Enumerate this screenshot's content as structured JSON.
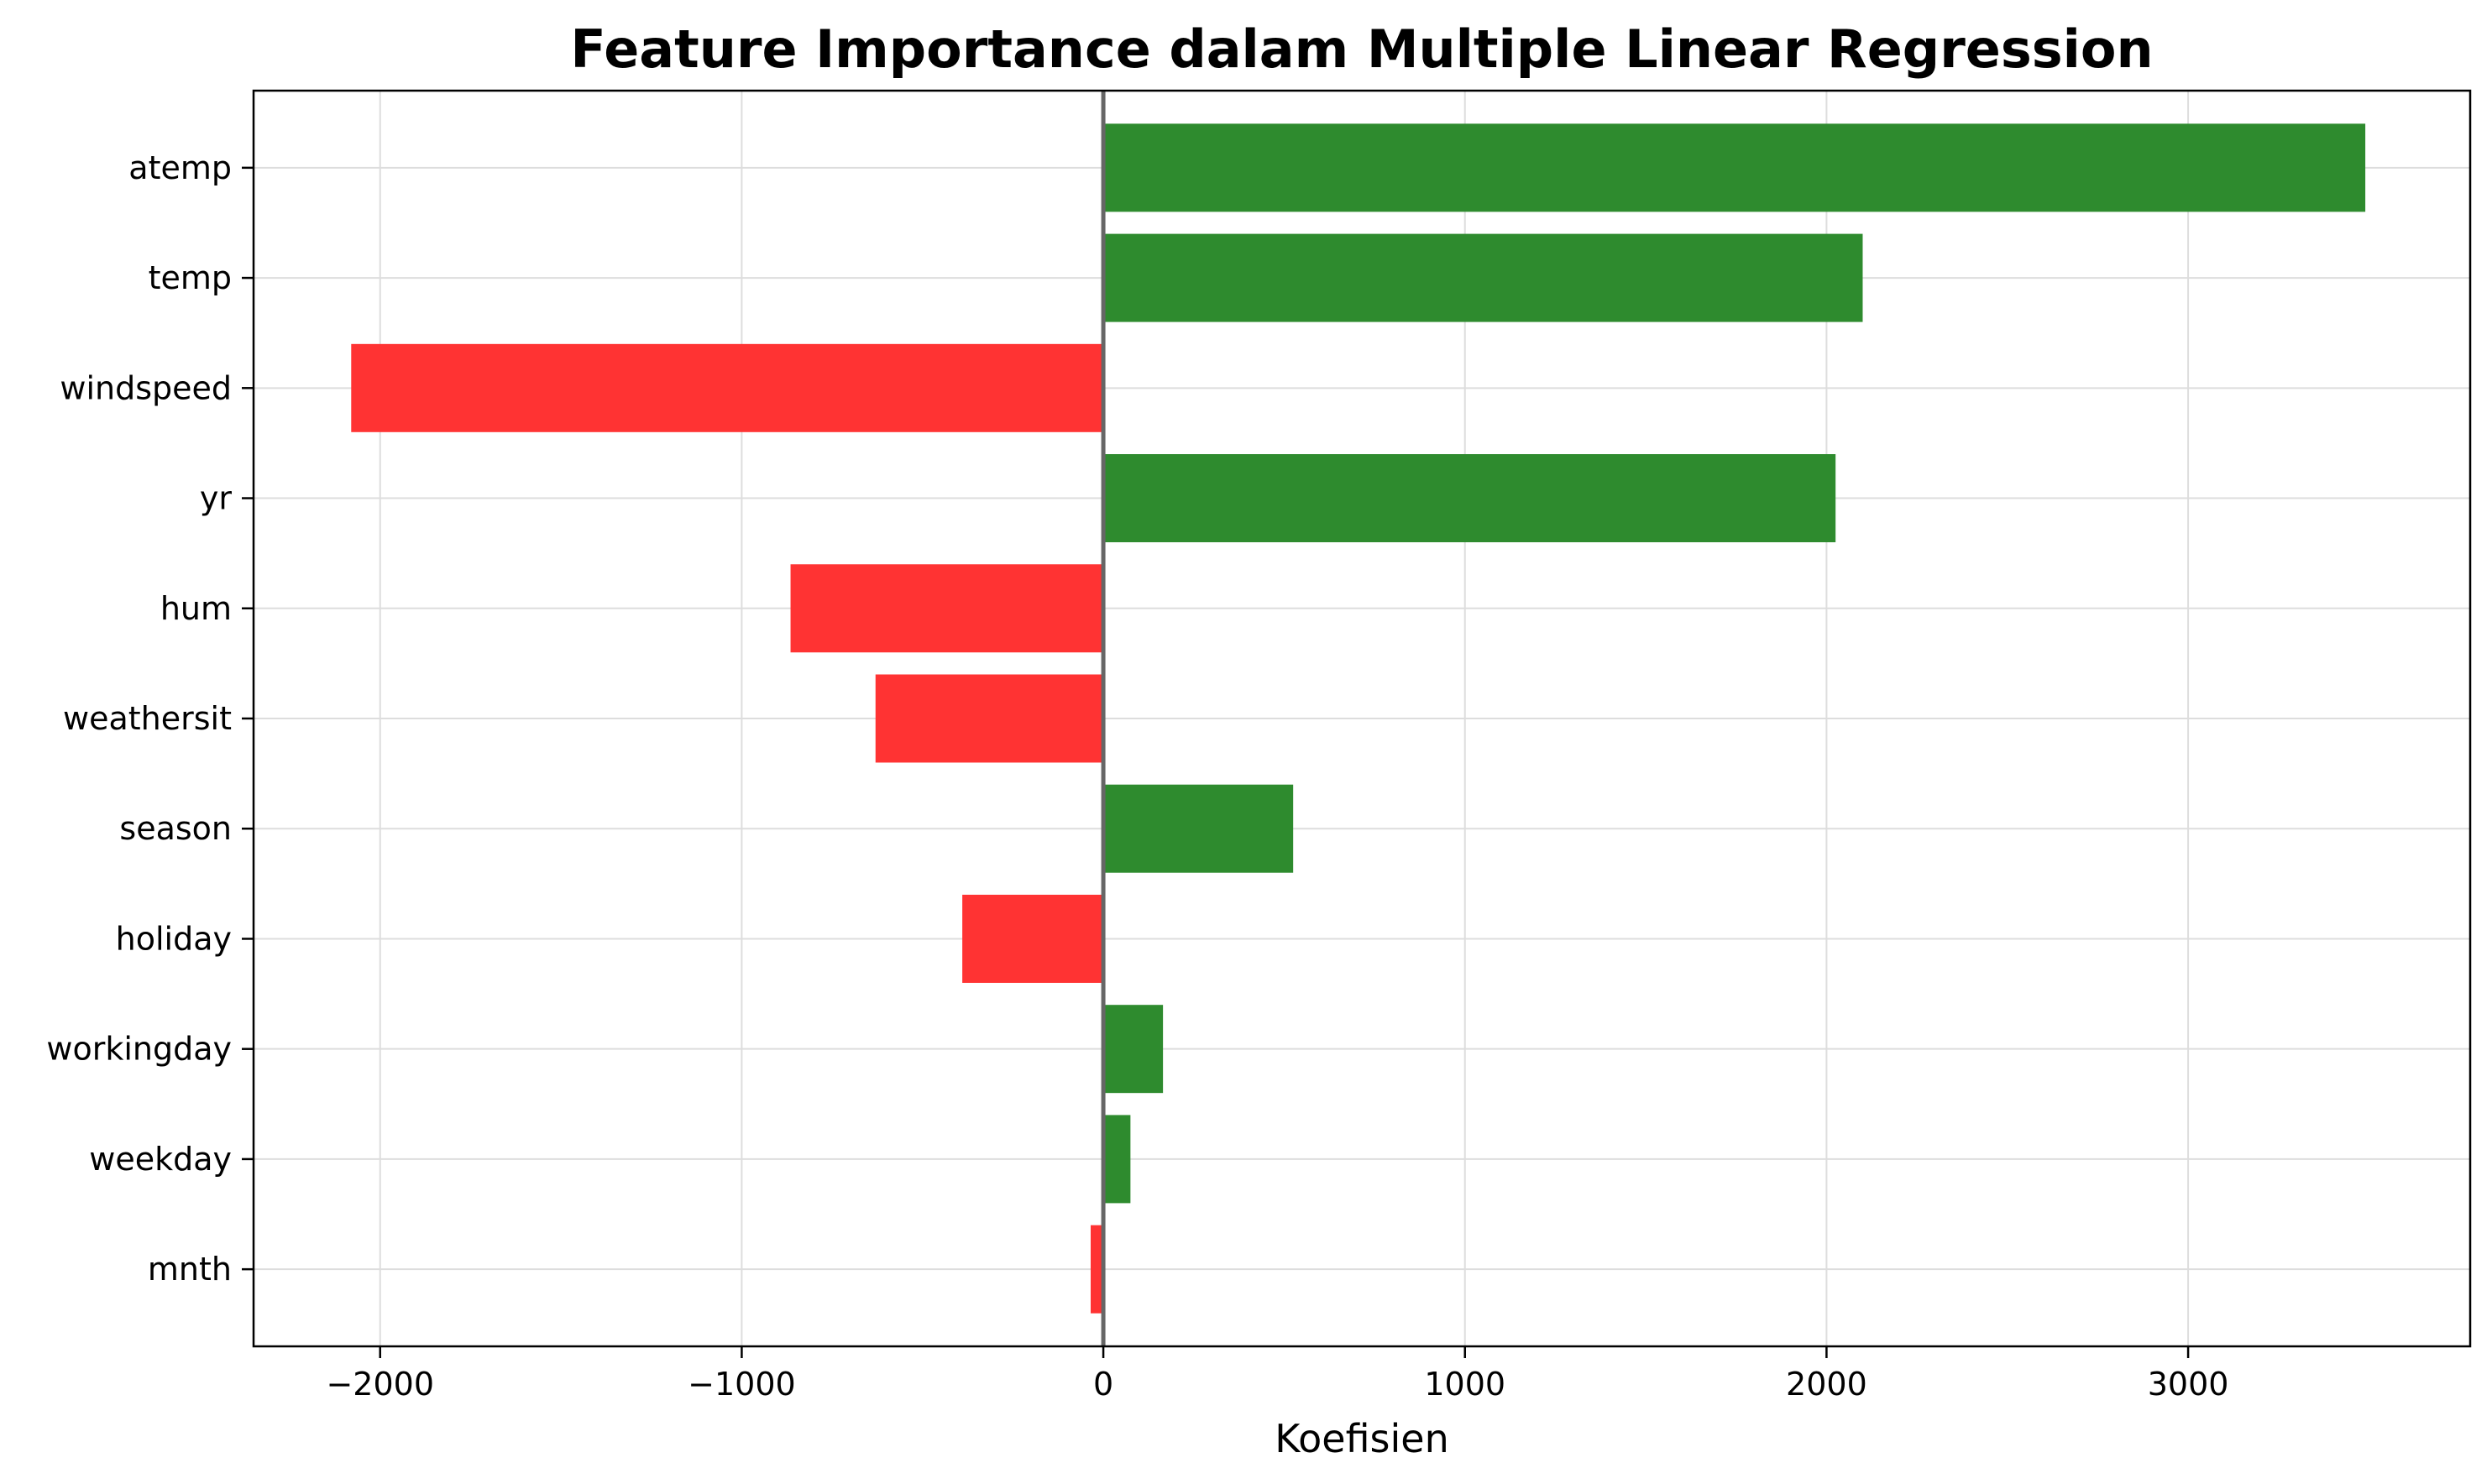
{
  "chart_data": {
    "type": "bar",
    "orientation": "horizontal",
    "title": "Feature Importance dalam Multiple Linear Regression",
    "xlabel": "Koefisien",
    "ylabel": "",
    "xlim": [
      -2350,
      3780
    ],
    "x_ticks": [
      -2000,
      -1000,
      0,
      1000,
      2000,
      3000
    ],
    "x_tick_labels": [
      "−2000",
      "−1000",
      "0",
      "1000",
      "2000",
      "3000"
    ],
    "categories": [
      "atemp",
      "temp",
      "windspeed",
      "yr",
      "hum",
      "weathersit",
      "season",
      "holiday",
      "workingday",
      "weekday",
      "mnth"
    ],
    "values": [
      3490,
      2100,
      -2080,
      2025,
      -865,
      -630,
      525,
      -390,
      165,
      75,
      -35
    ],
    "colors": {
      "positive": "#2e8b2e",
      "negative": "#ff3333",
      "zero_line": "#666666",
      "grid": "#dddddd"
    },
    "grid": true,
    "legend": "none"
  }
}
